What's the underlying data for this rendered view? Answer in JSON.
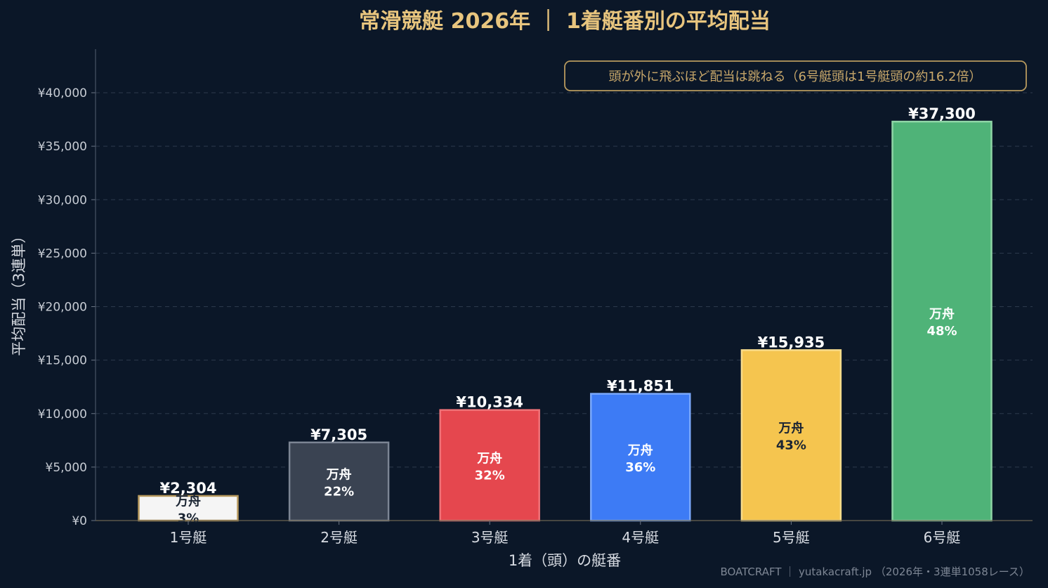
{
  "title": "常滑競艇 2026年 ｜ 1着艇番別の平均配当",
  "annotation": "頭が外に飛ぶほど配当は跳ねる（6号艇頭は1号艇頭の約16.2倍）",
  "footer": "BOATCRAFT ｜ yutakacraft.jp （2026年・3連単1058レース）",
  "chart_data": {
    "type": "bar",
    "xlabel": "1着（頭）の艇番",
    "ylabel": "平均配当（3連単）",
    "ylim": [
      0,
      44000
    ],
    "grid": true,
    "yticks": [
      0,
      5000,
      10000,
      15000,
      20000,
      25000,
      30000,
      35000,
      40000
    ],
    "ytick_labels": [
      "¥0",
      "¥5,000",
      "¥10,000",
      "¥15,000",
      "¥20,000",
      "¥25,000",
      "¥30,000",
      "¥35,000",
      "¥40,000"
    ],
    "categories": [
      "1号艇",
      "2号艇",
      "3号艇",
      "4号艇",
      "5号艇",
      "6号艇"
    ],
    "values": [
      2304,
      7305,
      10334,
      11851,
      15935,
      37300
    ],
    "value_labels": [
      "¥2,304",
      "¥7,305",
      "¥10,334",
      "¥11,851",
      "¥15,935",
      "¥37,300"
    ],
    "inner_label": "万舟",
    "manshu_rates": [
      "3%",
      "22%",
      "32%",
      "36%",
      "43%",
      "48%"
    ],
    "colors": [
      "#f5f5f5",
      "#3a4352",
      "#e5474e",
      "#3d7bf5",
      "#f5c54f",
      "#4fb378"
    ],
    "edge_colors": [
      "#b89a5e",
      "#7c8594",
      "#f07378",
      "#7aa8fb",
      "#f8dc8b",
      "#8fd5a6"
    ],
    "inner_text_colors": [
      "#1b2533",
      "#ffffff",
      "#ffffff",
      "#ffffff",
      "#1b2533",
      "#ffffff"
    ]
  }
}
